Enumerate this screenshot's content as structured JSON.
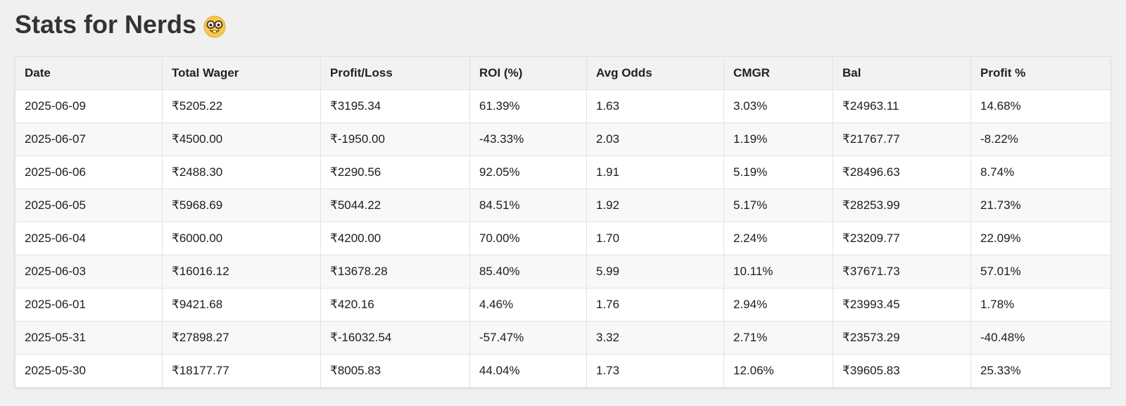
{
  "page": {
    "title": "Stats for Nerds",
    "title_icon": "nerd-face-emoji"
  },
  "table": {
    "headers": [
      "Date",
      "Total Wager",
      "Profit/Loss",
      "ROI (%)",
      "Avg Odds",
      "CMGR",
      "Bal",
      "Profit %"
    ],
    "rows": [
      [
        "2025-06-09",
        "₹5205.22",
        "₹3195.34",
        "61.39%",
        "1.63",
        "3.03%",
        "₹24963.11",
        "14.68%"
      ],
      [
        "2025-06-07",
        "₹4500.00",
        "₹-1950.00",
        "-43.33%",
        "2.03",
        "1.19%",
        "₹21767.77",
        "-8.22%"
      ],
      [
        "2025-06-06",
        "₹2488.30",
        "₹2290.56",
        "92.05%",
        "1.91",
        "5.19%",
        "₹28496.63",
        "8.74%"
      ],
      [
        "2025-06-05",
        "₹5968.69",
        "₹5044.22",
        "84.51%",
        "1.92",
        "5.17%",
        "₹28253.99",
        "21.73%"
      ],
      [
        "2025-06-04",
        "₹6000.00",
        "₹4200.00",
        "70.00%",
        "1.70",
        "2.24%",
        "₹23209.77",
        "22.09%"
      ],
      [
        "2025-06-03",
        "₹16016.12",
        "₹13678.28",
        "85.40%",
        "5.99",
        "10.11%",
        "₹37671.73",
        "57.01%"
      ],
      [
        "2025-06-01",
        "₹9421.68",
        "₹420.16",
        "4.46%",
        "1.76",
        "2.94%",
        "₹23993.45",
        "1.78%"
      ],
      [
        "2025-05-31",
        "₹27898.27",
        "₹-16032.54",
        "-57.47%",
        "3.32",
        "2.71%",
        "₹23573.29",
        "-40.48%"
      ],
      [
        "2025-05-30",
        "₹18177.77",
        "₹8005.83",
        "44.04%",
        "1.73",
        "12.06%",
        "₹39605.83",
        "25.33%"
      ]
    ]
  },
  "colors": {
    "background": "#f0f0f0",
    "header_bg": "#f2f2f2",
    "row_alt_bg": "#f8f8f8",
    "title_text": "#333333"
  }
}
